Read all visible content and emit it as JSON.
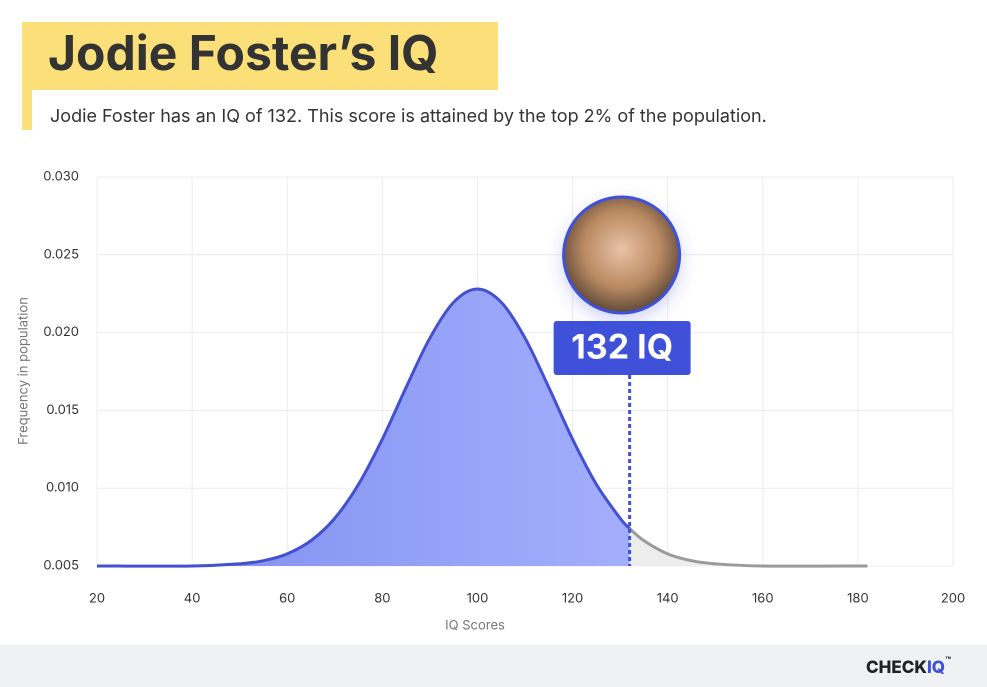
{
  "chart_data": {
    "type": "line",
    "title": "Jodie Foster’s IQ",
    "subtitle": "Jodie Foster has an IQ of 132. This score is attained by the top 2% of the population.",
    "x_label": "IQ Scores",
    "y_label": "Frequency in population",
    "x": [
      20,
      40,
      50,
      55,
      60,
      65,
      70,
      75,
      80,
      85,
      90,
      95,
      100,
      105,
      110,
      115,
      120,
      125,
      130,
      132,
      135,
      140,
      145,
      150,
      160,
      182
    ],
    "series": [
      {
        "color": "#4350cf",
        "values": [
          0.005,
          0.005,
          0.00514,
          0.00534,
          0.00578,
          0.00663,
          0.00807,
          0.01025,
          0.01315,
          0.01648,
          0.01965,
          0.02195,
          0.0228,
          0.02195,
          0.01965,
          0.01648,
          0.01315,
          0.01025,
          0.00807,
          0.00741,
          0.00663,
          0.00578,
          0.00534,
          0.00514,
          0.005,
          0.005
        ]
      }
    ],
    "highlight": {
      "x": 132,
      "label": "132 IQ",
      "color": "#3f51d9"
    },
    "xlim": [
      20,
      200
    ],
    "xticks": [
      20,
      40,
      60,
      80,
      100,
      120,
      140,
      160,
      180,
      200
    ],
    "ylim": [
      0.005,
      0.03
    ],
    "yticks": [
      {
        "value": 0.005,
        "label": "0.005"
      },
      {
        "value": 0.01,
        "label": "0.010"
      },
      {
        "value": 0.015,
        "label": "0.015"
      },
      {
        "value": 0.02,
        "label": "0.020"
      },
      {
        "value": 0.025,
        "label": "0.025"
      },
      {
        "value": 0.03,
        "label": "0.030"
      }
    ],
    "grid": true,
    "brand": {
      "part1": "CHECK",
      "part2": "IQ",
      "mark": "™"
    }
  }
}
